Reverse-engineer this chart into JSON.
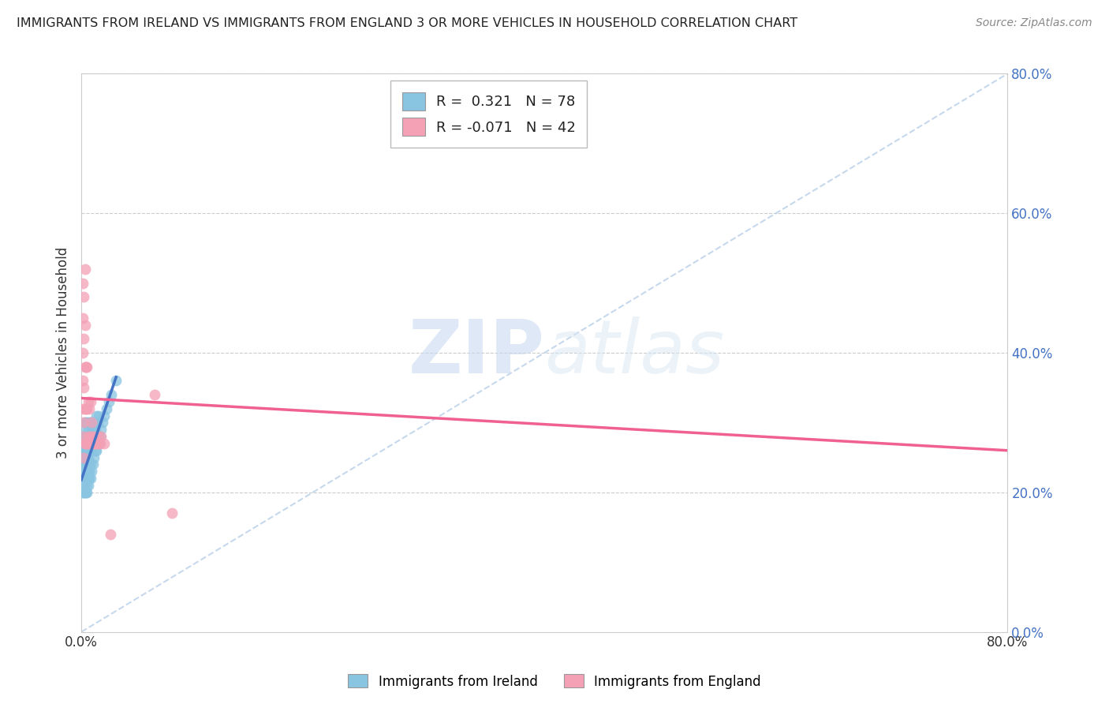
{
  "title": "IMMIGRANTS FROM IRELAND VS IMMIGRANTS FROM ENGLAND 3 OR MORE VEHICLES IN HOUSEHOLD CORRELATION CHART",
  "source": "Source: ZipAtlas.com",
  "ylabel": "3 or more Vehicles in Household",
  "legend_ireland": "Immigrants from Ireland",
  "legend_england": "Immigrants from England",
  "R_ireland": 0.321,
  "N_ireland": 78,
  "R_england": -0.071,
  "N_england": 42,
  "xlim": [
    0.0,
    0.8
  ],
  "ylim": [
    0.0,
    0.8
  ],
  "color_ireland": "#89c4e1",
  "color_england": "#f4a0b5",
  "line_ireland": "#4472c4",
  "line_england": "#f06090",
  "background_color": "#ffffff",
  "watermark_zip": "ZIP",
  "watermark_atlas": "atlas",
  "ireland_x": [
    0.001,
    0.001,
    0.001,
    0.001,
    0.002,
    0.002,
    0.002,
    0.002,
    0.002,
    0.002,
    0.002,
    0.002,
    0.003,
    0.003,
    0.003,
    0.003,
    0.003,
    0.003,
    0.003,
    0.003,
    0.004,
    0.004,
    0.004,
    0.004,
    0.004,
    0.004,
    0.004,
    0.004,
    0.005,
    0.005,
    0.005,
    0.005,
    0.005,
    0.005,
    0.005,
    0.005,
    0.006,
    0.006,
    0.006,
    0.006,
    0.006,
    0.006,
    0.007,
    0.007,
    0.007,
    0.007,
    0.007,
    0.007,
    0.008,
    0.008,
    0.008,
    0.008,
    0.008,
    0.009,
    0.009,
    0.009,
    0.01,
    0.01,
    0.01,
    0.011,
    0.011,
    0.012,
    0.012,
    0.013,
    0.013,
    0.013,
    0.014,
    0.014,
    0.015,
    0.015,
    0.016,
    0.017,
    0.018,
    0.02,
    0.022,
    0.024,
    0.026,
    0.03
  ],
  "ireland_y": [
    0.2,
    0.22,
    0.23,
    0.24,
    0.2,
    0.21,
    0.22,
    0.24,
    0.25,
    0.26,
    0.27,
    0.28,
    0.2,
    0.22,
    0.23,
    0.24,
    0.25,
    0.26,
    0.28,
    0.3,
    0.2,
    0.22,
    0.23,
    0.24,
    0.25,
    0.26,
    0.27,
    0.29,
    0.2,
    0.21,
    0.22,
    0.23,
    0.24,
    0.25,
    0.27,
    0.3,
    0.21,
    0.22,
    0.23,
    0.25,
    0.27,
    0.29,
    0.22,
    0.23,
    0.24,
    0.26,
    0.28,
    0.3,
    0.22,
    0.24,
    0.26,
    0.28,
    0.3,
    0.23,
    0.26,
    0.29,
    0.24,
    0.27,
    0.3,
    0.25,
    0.28,
    0.26,
    0.29,
    0.26,
    0.28,
    0.31,
    0.27,
    0.3,
    0.27,
    0.31,
    0.28,
    0.29,
    0.3,
    0.31,
    0.32,
    0.33,
    0.34,
    0.36
  ],
  "england_x": [
    0.001,
    0.001,
    0.001,
    0.001,
    0.001,
    0.001,
    0.002,
    0.002,
    0.002,
    0.002,
    0.002,
    0.003,
    0.003,
    0.003,
    0.003,
    0.003,
    0.004,
    0.004,
    0.004,
    0.005,
    0.005,
    0.005,
    0.006,
    0.006,
    0.007,
    0.007,
    0.008,
    0.008,
    0.009,
    0.009,
    0.01,
    0.011,
    0.012,
    0.013,
    0.014,
    0.015,
    0.016,
    0.017,
    0.02,
    0.025,
    0.063,
    0.078
  ],
  "england_y": [
    0.28,
    0.32,
    0.36,
    0.4,
    0.45,
    0.5,
    0.25,
    0.3,
    0.35,
    0.42,
    0.48,
    0.27,
    0.32,
    0.38,
    0.44,
    0.52,
    0.27,
    0.32,
    0.38,
    0.27,
    0.32,
    0.38,
    0.28,
    0.33,
    0.27,
    0.32,
    0.28,
    0.33,
    0.27,
    0.3,
    0.28,
    0.27,
    0.27,
    0.27,
    0.28,
    0.27,
    0.27,
    0.28,
    0.27,
    0.14,
    0.34,
    0.17
  ],
  "ireland_line_x": [
    0.0,
    0.03
  ],
  "ireland_line_y": [
    0.218,
    0.365
  ],
  "england_line_x": [
    0.0,
    0.8
  ],
  "england_line_y": [
    0.335,
    0.26
  ]
}
